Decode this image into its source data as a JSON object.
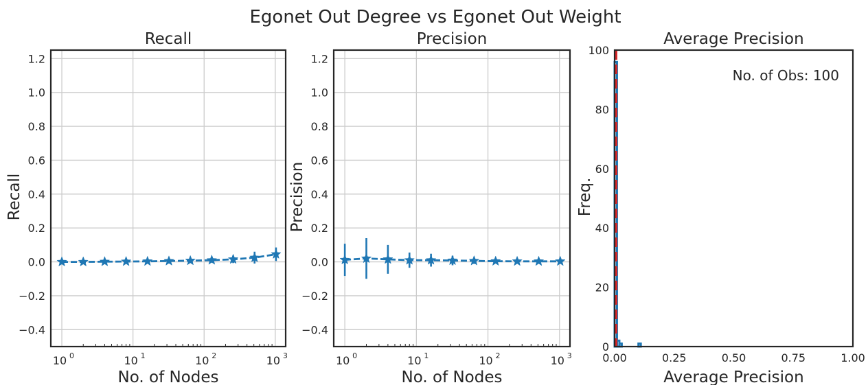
{
  "figure": {
    "suptitle": "Egonet Out Degree vs Egonet Out Weight"
  },
  "chart_data": [
    {
      "type": "line",
      "title": "Recall",
      "xlabel": "No. of Nodes",
      "ylabel": "Recall",
      "xscale": "log",
      "xlim": [
        0.7,
        1400
      ],
      "ylim": [
        -0.5,
        1.25
      ],
      "xticks": [
        1,
        10,
        100,
        1000
      ],
      "xtick_labels": [
        {
          "base": "10",
          "exp": "0"
        },
        {
          "base": "10",
          "exp": "1"
        },
        {
          "base": "10",
          "exp": "2"
        },
        {
          "base": "10",
          "exp": "3"
        }
      ],
      "yticks": [
        "-0.4",
        "-0.2",
        "0.0",
        "0.2",
        "0.4",
        "0.6",
        "0.8",
        "1.0",
        "1.2"
      ],
      "grid": true,
      "series": [
        {
          "color": "#1f77b4",
          "marker": "star",
          "linestyle": "dashed",
          "x": [
            1,
            2,
            4,
            8,
            16,
            32,
            64,
            128,
            256,
            512,
            1024
          ],
          "y": [
            0.0,
            0.0,
            0.001,
            0.002,
            0.003,
            0.005,
            0.007,
            0.01,
            0.015,
            0.025,
            0.045
          ],
          "yerr": [
            0.004,
            0.005,
            0.006,
            0.006,
            0.007,
            0.008,
            0.01,
            0.014,
            0.022,
            0.035,
            0.04
          ]
        }
      ]
    },
    {
      "type": "line",
      "title": "Precision",
      "xlabel": "No. of Nodes",
      "ylabel": "Precision",
      "xscale": "log",
      "xlim": [
        0.7,
        1400
      ],
      "ylim": [
        -0.5,
        1.25
      ],
      "xticks": [
        1,
        10,
        100,
        1000
      ],
      "xtick_labels": [
        {
          "base": "10",
          "exp": "0"
        },
        {
          "base": "10",
          "exp": "1"
        },
        {
          "base": "10",
          "exp": "2"
        },
        {
          "base": "10",
          "exp": "3"
        }
      ],
      "yticks": [
        "-0.4",
        "-0.2",
        "0.0",
        "0.2",
        "0.4",
        "0.6",
        "0.8",
        "1.0",
        "1.2"
      ],
      "grid": true,
      "series": [
        {
          "color": "#1f77b4",
          "marker": "star",
          "linestyle": "dashed",
          "x": [
            1,
            2,
            4,
            8,
            16,
            32,
            64,
            128,
            256,
            512,
            1024
          ],
          "y": [
            0.012,
            0.02,
            0.015,
            0.01,
            0.01,
            0.008,
            0.006,
            0.004,
            0.003,
            0.003,
            0.003
          ],
          "yerr": [
            0.095,
            0.12,
            0.085,
            0.045,
            0.038,
            0.028,
            0.018,
            0.012,
            0.008,
            0.007,
            0.006
          ]
        }
      ]
    },
    {
      "type": "histogram",
      "title": "Average Precision",
      "xlabel": "Average Precision",
      "ylabel": "Freq.",
      "xlim": [
        0,
        1
      ],
      "ylim": [
        0,
        100
      ],
      "xticks": [
        "0.00",
        "0.25",
        "0.50",
        "0.75",
        "1.00"
      ],
      "yticks": [
        "0",
        "20",
        "40",
        "60",
        "80",
        "100"
      ],
      "grid": false,
      "bin_width": 0.01,
      "bins": [
        {
          "x0": 0.0,
          "count": 96
        },
        {
          "x0": 0.01,
          "count": 2
        },
        {
          "x0": 0.02,
          "count": 1
        },
        {
          "x0": 0.1,
          "count": 1
        }
      ],
      "vline": {
        "x": 0.0,
        "color": "#d62728",
        "linestyle": "dashed"
      },
      "annotation": "No. of Obs: 100",
      "bar_color": "#1f77b4"
    }
  ]
}
